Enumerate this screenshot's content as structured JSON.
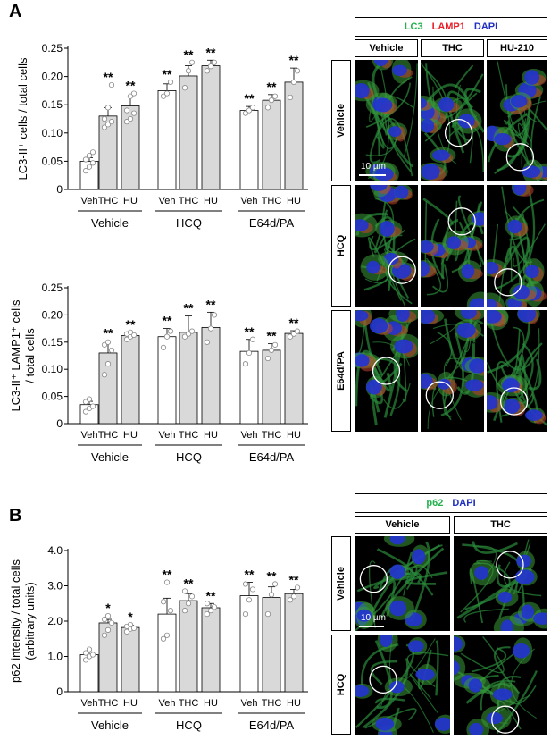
{
  "panel_labels": {
    "a": "A",
    "b": "B"
  },
  "chart_data": [
    {
      "type": "bar",
      "ylabel": "LC3-II⁺ cells / total cells",
      "ylim": [
        0,
        0.25
      ],
      "yticks": [
        "0",
        "0.05",
        "0.10",
        "0.15",
        "0.20",
        "0.25"
      ],
      "groups": [
        "Vehicle",
        "HCQ",
        "E64d/PA"
      ],
      "categories": [
        "Veh",
        "THC",
        "HU"
      ],
      "values": [
        [
          0.05,
          0.13,
          0.148
        ],
        [
          0.175,
          0.201,
          0.219
        ],
        [
          0.14,
          0.158,
          0.19
        ]
      ],
      "errors": [
        [
          0.006,
          0.015,
          0.016
        ],
        [
          0.012,
          0.018,
          0.01
        ],
        [
          0.007,
          0.01,
          0.025
        ]
      ],
      "points": [
        [
          [
            0.033,
            0.04,
            0.047,
            0.053,
            0.06,
            0.066
          ],
          [
            0.11,
            0.115,
            0.12,
            0.125,
            0.145,
            0.185
          ],
          [
            0.12,
            0.125,
            0.135,
            0.14,
            0.165,
            0.17
          ]
        ],
        [
          [
            0.165,
            0.17,
            0.19
          ],
          [
            0.18,
            0.21,
            0.225
          ],
          [
            0.21,
            0.218,
            0.225
          ]
        ],
        [
          [
            0.135,
            0.14,
            0.145
          ],
          [
            0.145,
            0.158,
            0.165
          ],
          [
            0.163,
            0.19,
            0.21
          ]
        ]
      ],
      "significance": [
        [
          "",
          "**",
          "**"
        ],
        [
          "**",
          "**",
          "**"
        ],
        [
          "**",
          "**",
          "**"
        ]
      ],
      "bar_colors": [
        "#ffffff",
        "#d9d9d9",
        "#d9d9d9"
      ]
    },
    {
      "type": "bar",
      "ylabel_lines": [
        "LC3-II⁺ LAMP1⁺ cells",
        "/ total cells"
      ],
      "ylim": [
        0,
        0.25
      ],
      "yticks": [
        "0",
        "0.05",
        "0.10",
        "0.15",
        "0.20",
        "0.25"
      ],
      "groups": [
        "Vehicle",
        "HCQ",
        "E64d/PA"
      ],
      "categories": [
        "Veh",
        "THC",
        "HU"
      ],
      "values": [
        [
          0.035,
          0.13,
          0.162
        ],
        [
          0.16,
          0.168,
          0.177
        ],
        [
          0.133,
          0.135,
          0.166
        ]
      ],
      "errors": [
        [
          0.006,
          0.022,
          0.005
        ],
        [
          0.015,
          0.03,
          0.028
        ],
        [
          0.022,
          0.012,
          0.005
        ]
      ],
      "points": [
        [
          [
            0.022,
            0.028,
            0.032,
            0.04,
            0.045
          ],
          [
            0.09,
            0.11,
            0.135,
            0.145,
            0.15
          ],
          [
            0.155,
            0.16,
            0.163,
            0.165,
            0.168
          ]
        ],
        [
          [
            0.14,
            0.16,
            0.17
          ],
          [
            0.16,
            0.165,
            0.17
          ],
          [
            0.15,
            0.175,
            0.2
          ]
        ],
        [
          [
            0.11,
            0.13,
            0.155
          ],
          [
            0.12,
            0.135,
            0.145
          ],
          [
            0.16,
            0.165,
            0.17
          ]
        ]
      ],
      "significance": [
        [
          "",
          "**",
          "**"
        ],
        [
          "**",
          "**",
          "**"
        ],
        [
          "**",
          "**",
          "**"
        ]
      ],
      "bar_colors": [
        "#ffffff",
        "#d9d9d9",
        "#d9d9d9"
      ]
    },
    {
      "type": "bar",
      "ylabel_lines": [
        "p62 intensity / total cells",
        "(arbitrary units)"
      ],
      "ylim": [
        0,
        4.0
      ],
      "yticks": [
        "0",
        "1.0",
        "2.0",
        "3.0",
        "4.0"
      ],
      "groups": [
        "Vehicle",
        "HCQ",
        "E64d/PA"
      ],
      "categories": [
        "Veh",
        "THC",
        "HU"
      ],
      "values": [
        [
          1.05,
          1.95,
          1.82
        ],
        [
          2.2,
          2.58,
          2.38
        ],
        [
          2.72,
          2.67,
          2.78
        ]
      ],
      "errors": [
        [
          0.08,
          0.1,
          0.06
        ],
        [
          0.45,
          0.2,
          0.12
        ],
        [
          0.38,
          0.3,
          0.12
        ]
      ],
      "points": [
        [
          [
            0.9,
            1.0,
            1.05,
            1.1,
            1.2
          ],
          [
            1.6,
            1.75,
            1.95,
            2.05,
            2.15
          ],
          [
            1.7,
            1.78,
            1.8,
            1.85,
            1.9
          ]
        ],
        [
          [
            1.5,
            1.6,
            2.3,
            2.55,
            3.1
          ],
          [
            2.3,
            2.5,
            2.7,
            2.85
          ],
          [
            2.2,
            2.3,
            2.4,
            2.5
          ]
        ],
        [
          [
            2.2,
            2.6,
            2.9,
            3.05
          ],
          [
            2.2,
            2.75,
            3.05
          ],
          [
            2.6,
            2.7,
            2.95
          ]
        ]
      ],
      "significance": [
        [
          "",
          "*",
          "*"
        ],
        [
          "**",
          "**",
          "**"
        ],
        [
          "**",
          "**",
          "**"
        ]
      ],
      "bar_colors": [
        "#ffffff",
        "#d9d9d9",
        "#d9d9d9"
      ]
    }
  ],
  "micrographs": {
    "A": {
      "legend": [
        {
          "text": "LC3",
          "color": "#22b14c"
        },
        {
          "text": "LAMP1",
          "color": "#e8202a"
        },
        {
          "text": "DAPI",
          "color": "#1f2fbf"
        }
      ],
      "columns": [
        "Vehicle",
        "THC",
        "HU-210"
      ],
      "rows": [
        "Vehicle",
        "HCQ",
        "E64d/PA"
      ],
      "scale_bar": "10 µm"
    },
    "B": {
      "legend": [
        {
          "text": "p62",
          "color": "#22b14c"
        },
        {
          "text": "DAPI",
          "color": "#1f2fbf"
        }
      ],
      "columns": [
        "Vehicle",
        "THC"
      ],
      "rows": [
        "Vehicle",
        "HCQ"
      ],
      "scale_bar": "10 µm"
    }
  }
}
